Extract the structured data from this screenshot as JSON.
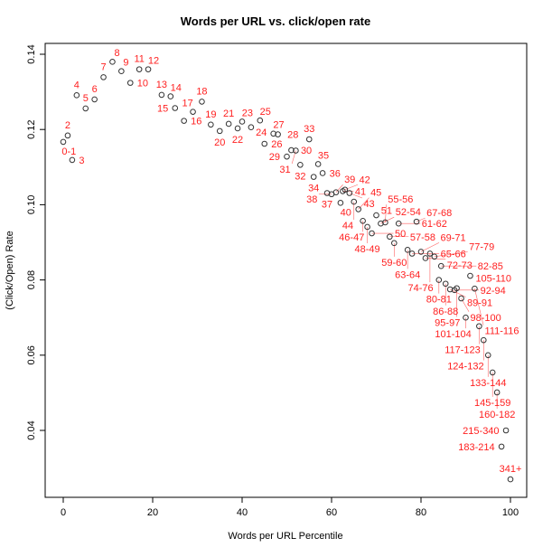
{
  "chart_data": {
    "type": "scatter",
    "title": "Words per URL vs. click/open rate",
    "xlabel": "Words per URL Percentile",
    "ylabel": "(Click/Open) Rate",
    "xlim": [
      -4,
      104
    ],
    "ylim": [
      0.0225,
      0.1435
    ],
    "xticks": [
      "0",
      "20",
      "40",
      "60",
      "80",
      "100"
    ],
    "yticks": [
      "0.04",
      "0.06",
      "0.08",
      "0.10",
      "0.12",
      "0.14"
    ],
    "grid": false,
    "point_color": "#333333",
    "label_color": "#ff2020",
    "points": [
      {
        "label": "0-1",
        "x": 0,
        "y": 0.1167
      },
      {
        "label": "2",
        "x": 1,
        "y": 0.1184
      },
      {
        "label": "3",
        "x": 2,
        "y": 0.1119
      },
      {
        "label": "4",
        "x": 3,
        "y": 0.1291
      },
      {
        "label": "5",
        "x": 5,
        "y": 0.1256
      },
      {
        "label": "6",
        "x": 7,
        "y": 0.128
      },
      {
        "label": "7",
        "x": 9,
        "y": 0.1339
      },
      {
        "label": "8",
        "x": 11,
        "y": 0.138
      },
      {
        "label": "9",
        "x": 13,
        "y": 0.1355
      },
      {
        "label": "10",
        "x": 15,
        "y": 0.1324
      },
      {
        "label": "11",
        "x": 17,
        "y": 0.136
      },
      {
        "label": "12",
        "x": 19,
        "y": 0.136
      },
      {
        "label": "13",
        "x": 22,
        "y": 0.1292
      },
      {
        "label": "14",
        "x": 24,
        "y": 0.1288
      },
      {
        "label": "15",
        "x": 25,
        "y": 0.1257
      },
      {
        "label": "16",
        "x": 27,
        "y": 0.1223
      },
      {
        "label": "17",
        "x": 29,
        "y": 0.1247
      },
      {
        "label": "18",
        "x": 31,
        "y": 0.1274
      },
      {
        "label": "19",
        "x": 33,
        "y": 0.1213
      },
      {
        "label": "20",
        "x": 35,
        "y": 0.1196
      },
      {
        "label": "21",
        "x": 37,
        "y": 0.1215
      },
      {
        "label": "22",
        "x": 39,
        "y": 0.1203
      },
      {
        "label": "23",
        "x": 40,
        "y": 0.1221
      },
      {
        "label": "24",
        "x": 42,
        "y": 0.1206
      },
      {
        "label": "25",
        "x": 44,
        "y": 0.1224
      },
      {
        "label": "26",
        "x": 45,
        "y": 0.1162
      },
      {
        "label": "27",
        "x": 47,
        "y": 0.1189
      },
      {
        "label": "28",
        "x": 48,
        "y": 0.1187
      },
      {
        "label": "29",
        "x": 50,
        "y": 0.1128
      },
      {
        "label": "30",
        "x": 51,
        "y": 0.1145
      },
      {
        "label": "31",
        "x": 52,
        "y": 0.1144
      },
      {
        "label": "32",
        "x": 53,
        "y": 0.1106
      },
      {
        "label": "33",
        "x": 55,
        "y": 0.1174
      },
      {
        "label": "34",
        "x": 56,
        "y": 0.1074
      },
      {
        "label": "35",
        "x": 57,
        "y": 0.1108
      },
      {
        "label": "36",
        "x": 58,
        "y": 0.1084
      },
      {
        "label": "37",
        "x": 59,
        "y": 0.1031
      },
      {
        "label": "38",
        "x": 60,
        "y": 0.1028
      },
      {
        "label": "39",
        "x": 61,
        "y": 0.1033
      },
      {
        "label": "40",
        "x": 62,
        "y": 0.1005
      },
      {
        "label": "41",
        "x": 62.5,
        "y": 0.1036
      },
      {
        "label": "42",
        "x": 63,
        "y": 0.104
      },
      {
        "label": "43",
        "x": 64,
        "y": 0.1031
      },
      {
        "label": "44",
        "x": 65,
        "y": 0.1008
      },
      {
        "label": "45",
        "x": 66,
        "y": 0.0988
      },
      {
        "label": "46-47",
        "x": 67,
        "y": 0.0957
      },
      {
        "label": "48-49",
        "x": 68,
        "y": 0.0941
      },
      {
        "label": "50",
        "x": 69,
        "y": 0.0924
      },
      {
        "label": "51",
        "x": 70,
        "y": 0.0972
      },
      {
        "label": "52-54",
        "x": 71,
        "y": 0.095
      },
      {
        "label": "55-56",
        "x": 72,
        "y": 0.0953
      },
      {
        "label": "57-58",
        "x": 73,
        "y": 0.0915
      },
      {
        "label": "59-60",
        "x": 74,
        "y": 0.0898
      },
      {
        "label": "61-62",
        "x": 75,
        "y": 0.095
      },
      {
        "label": "63-64",
        "x": 77,
        "y": 0.088
      },
      {
        "label": "65-66",
        "x": 78,
        "y": 0.087
      },
      {
        "label": "67-68",
        "x": 79,
        "y": 0.0955
      },
      {
        "label": "69-71",
        "x": 80,
        "y": 0.0875
      },
      {
        "label": "72-73",
        "x": 81,
        "y": 0.0858
      },
      {
        "label": "74-76",
        "x": 82,
        "y": 0.087
      },
      {
        "label": "77-79",
        "x": 83,
        "y": 0.0862
      },
      {
        "label": "80-81",
        "x": 84,
        "y": 0.08
      },
      {
        "label": "82-85",
        "x": 84.5,
        "y": 0.0837
      },
      {
        "label": "86-88",
        "x": 85.5,
        "y": 0.079
      },
      {
        "label": "89-91",
        "x": 86.5,
        "y": 0.0775
      },
      {
        "label": "92-94",
        "x": 87.5,
        "y": 0.0773
      },
      {
        "label": "95-97",
        "x": 88,
        "y": 0.0778
      },
      {
        "label": "98-100",
        "x": 89,
        "y": 0.0751
      },
      {
        "label": "101-104",
        "x": 90,
        "y": 0.07
      },
      {
        "label": "105-110",
        "x": 91,
        "y": 0.0811
      },
      {
        "label": "111-116",
        "x": 92,
        "y": 0.0777
      },
      {
        "label": "117-123",
        "x": 93,
        "y": 0.0677
      },
      {
        "label": "124-132",
        "x": 94,
        "y": 0.064
      },
      {
        "label": "133-144",
        "x": 95,
        "y": 0.06
      },
      {
        "label": "145-159",
        "x": 96,
        "y": 0.0554
      },
      {
        "label": "160-182",
        "x": 97,
        "y": 0.0501
      },
      {
        "label": "183-214",
        "x": 98,
        "y": 0.0357
      },
      {
        "label": "215-340",
        "x": 99,
        "y": 0.04
      },
      {
        "label": "341+",
        "x": 100,
        "y": 0.027
      }
    ]
  }
}
